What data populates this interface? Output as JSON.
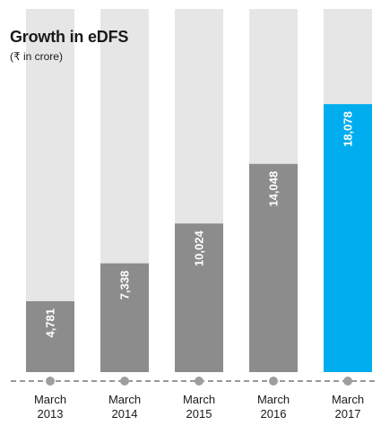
{
  "chart_data": {
    "type": "bar",
    "title": "Growth in eDFS",
    "subtitle": "(₹ in crore)",
    "categories": [
      "March 2013",
      "March 2014",
      "March 2015",
      "March 2016",
      "March 2017"
    ],
    "category_lines": [
      [
        "March",
        "2013"
      ],
      [
        "March",
        "2014"
      ],
      [
        "March",
        "2015"
      ],
      [
        "March",
        "2016"
      ],
      [
        "March",
        "2017"
      ]
    ],
    "values": [
      4781,
      7338,
      10024,
      14048,
      18078
    ],
    "value_labels": [
      "4,781",
      "7,338",
      "10,024",
      "14,048",
      "18,078"
    ],
    "ylim": [
      0,
      24500
    ],
    "xlabel": "",
    "ylabel": "",
    "grid": false,
    "highlight_index": 4,
    "colors": {
      "bar": "#8c8c8c",
      "highlight": "#00adef",
      "track": "#e6e6e6",
      "baseline": "#999999",
      "marker": "#9e9e9e",
      "value_text": "#ffffff",
      "tick_text": "#1a1a1a"
    }
  }
}
